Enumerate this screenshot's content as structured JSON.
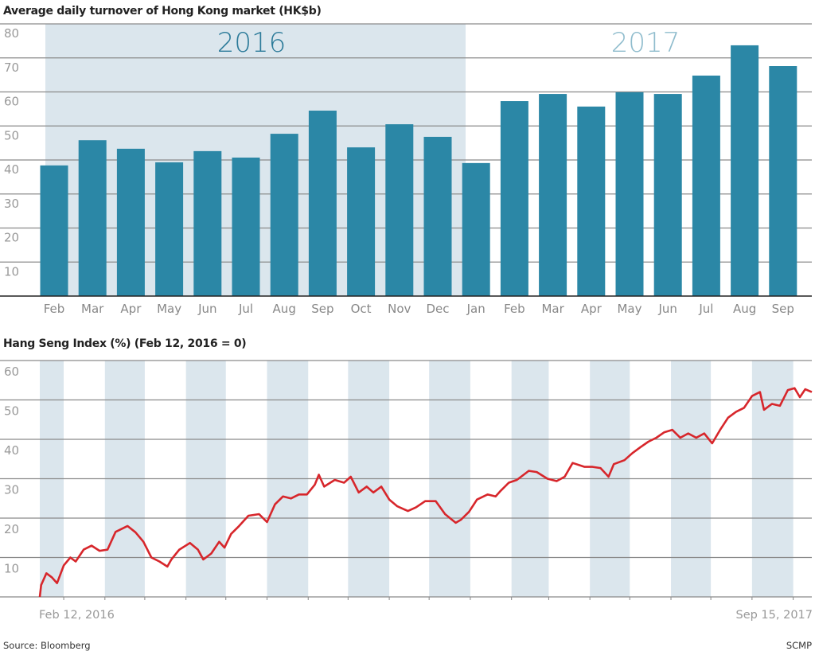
{
  "chart_data": [
    {
      "type": "bar",
      "title": "Average daily turnover of Hong Kong market (HK$b)",
      "categories": [
        "Feb",
        "Mar",
        "Apr",
        "May",
        "Jun",
        "Jul",
        "Aug",
        "Sep",
        "Oct",
        "Nov",
        "Dec",
        "Jan",
        "Feb",
        "Mar",
        "Apr",
        "May",
        "Jun",
        "Jul",
        "Aug",
        "Sep"
      ],
      "values": [
        38.4,
        45.8,
        43.3,
        39.3,
        42.6,
        40.7,
        47.7,
        54.5,
        43.7,
        50.5,
        46.8,
        39.1,
        57.3,
        59.4,
        55.7,
        59.9,
        59.4,
        64.8,
        73.7,
        67.6
      ],
      "year_groups": [
        {
          "label": "2016",
          "from": 0,
          "to": 10,
          "shaded": true
        },
        {
          "label": "2017",
          "from": 11,
          "to": 19,
          "shaded": false
        }
      ],
      "ylim": [
        0,
        80
      ],
      "yticks": [
        10,
        20,
        30,
        40,
        50,
        60,
        70,
        80
      ],
      "grid": true,
      "colors": {
        "bar": "#2b87a6",
        "shade": "#dbe6ed",
        "year2016": "#2b7a99",
        "year2017": "#8fbccd",
        "grid": "#8a8a8a"
      }
    },
    {
      "type": "line",
      "title": "Hang Seng Index (%) (Feb 12, 2016 = 0)",
      "ylim": [
        0,
        60
      ],
      "yticks": [
        10,
        20,
        30,
        40,
        50,
        60
      ],
      "xlim": [
        "2016-02-12",
        "2017-09-15"
      ],
      "xlabels": [
        "Feb 12, 2016",
        "Sep 15, 2017"
      ],
      "grid": true,
      "shaded_bands": "alternate months (Feb, Apr, Jun, Aug, Oct, Dec)",
      "colors": {
        "line": "#d7262b",
        "shade": "#dbe6ed",
        "grid": "#8a8a8a"
      },
      "points": [
        [
          "2016-02-12",
          0
        ],
        [
          "2016-02-13",
          3
        ],
        [
          "2016-02-17",
          6
        ],
        [
          "2016-02-21",
          5
        ],
        [
          "2016-02-25",
          3.5
        ],
        [
          "2016-03-01",
          8
        ],
        [
          "2016-03-06",
          10
        ],
        [
          "2016-03-10",
          9
        ],
        [
          "2016-03-16",
          12
        ],
        [
          "2016-03-22",
          13
        ],
        [
          "2016-03-28",
          11.7
        ],
        [
          "2016-04-03",
          12
        ],
        [
          "2016-04-09",
          16.5
        ],
        [
          "2016-04-18",
          18
        ],
        [
          "2016-04-24",
          16.4
        ],
        [
          "2016-04-30",
          14
        ],
        [
          "2016-05-06",
          10
        ],
        [
          "2016-05-12",
          9
        ],
        [
          "2016-05-18",
          7.7
        ],
        [
          "2016-05-21",
          9.5
        ],
        [
          "2016-05-27",
          12
        ],
        [
          "2016-06-04",
          13.7
        ],
        [
          "2016-06-10",
          12
        ],
        [
          "2016-06-14",
          9.5
        ],
        [
          "2016-06-20",
          11
        ],
        [
          "2016-06-26",
          14
        ],
        [
          "2016-06-30",
          12.5
        ],
        [
          "2016-07-05",
          16
        ],
        [
          "2016-07-11",
          18
        ],
        [
          "2016-07-18",
          20.6
        ],
        [
          "2016-07-26",
          21
        ],
        [
          "2016-08-01",
          19
        ],
        [
          "2016-08-07",
          23.5
        ],
        [
          "2016-08-13",
          25.5
        ],
        [
          "2016-08-19",
          25
        ],
        [
          "2016-08-25",
          26
        ],
        [
          "2016-08-31",
          26
        ],
        [
          "2016-09-06",
          28.5
        ],
        [
          "2016-09-09",
          31
        ],
        [
          "2016-09-13",
          28
        ],
        [
          "2016-09-21",
          29.7
        ],
        [
          "2016-09-28",
          29
        ],
        [
          "2016-10-03",
          30.5
        ],
        [
          "2016-10-09",
          26.5
        ],
        [
          "2016-10-15",
          28
        ],
        [
          "2016-10-20",
          26.5
        ],
        [
          "2016-10-26",
          28
        ],
        [
          "2016-11-01",
          24.7
        ],
        [
          "2016-11-07",
          23
        ],
        [
          "2016-11-15",
          21.8
        ],
        [
          "2016-11-21",
          22.7
        ],
        [
          "2016-11-28",
          24.3
        ],
        [
          "2016-12-06",
          24.3
        ],
        [
          "2016-12-13",
          21
        ],
        [
          "2016-12-21",
          18.8
        ],
        [
          "2016-12-25",
          19.6
        ],
        [
          "2016-12-31",
          21.6
        ],
        [
          "2017-01-06",
          24.7
        ],
        [
          "2017-01-14",
          26
        ],
        [
          "2017-01-20",
          25.5
        ],
        [
          "2017-01-24",
          27
        ],
        [
          "2017-01-30",
          29
        ],
        [
          "2017-02-05",
          29.7
        ],
        [
          "2017-02-14",
          32
        ],
        [
          "2017-02-20",
          31.7
        ],
        [
          "2017-02-28",
          30
        ],
        [
          "2017-03-07",
          29.4
        ],
        [
          "2017-03-13",
          30.5
        ],
        [
          "2017-03-19",
          34
        ],
        [
          "2017-03-28",
          33
        ],
        [
          "2017-04-03",
          33
        ],
        [
          "2017-04-09",
          32.7
        ],
        [
          "2017-04-15",
          30.5
        ],
        [
          "2017-04-19",
          33.7
        ],
        [
          "2017-04-27",
          34.7
        ],
        [
          "2017-05-03",
          36.5
        ],
        [
          "2017-05-09",
          38
        ],
        [
          "2017-05-15",
          39.4
        ],
        [
          "2017-05-21",
          40.4
        ],
        [
          "2017-05-27",
          41.8
        ],
        [
          "2017-06-02",
          42.4
        ],
        [
          "2017-06-08",
          40.4
        ],
        [
          "2017-06-14",
          41.5
        ],
        [
          "2017-06-20",
          40.4
        ],
        [
          "2017-06-26",
          41.5
        ],
        [
          "2017-07-02",
          39
        ],
        [
          "2017-07-08",
          42.4
        ],
        [
          "2017-07-14",
          45.5
        ],
        [
          "2017-07-20",
          47
        ],
        [
          "2017-07-26",
          48
        ],
        [
          "2017-08-01",
          51
        ],
        [
          "2017-08-07",
          52
        ],
        [
          "2017-08-10",
          47.5
        ],
        [
          "2017-08-16",
          49
        ],
        [
          "2017-08-22",
          48.5
        ],
        [
          "2017-08-28",
          52.5
        ],
        [
          "2017-09-02",
          53
        ],
        [
          "2017-09-06",
          50.7
        ],
        [
          "2017-09-10",
          52.7
        ],
        [
          "2017-09-15",
          52
        ]
      ]
    }
  ],
  "footer": {
    "source": "Source: Bloomberg",
    "credit": "SCMP"
  }
}
